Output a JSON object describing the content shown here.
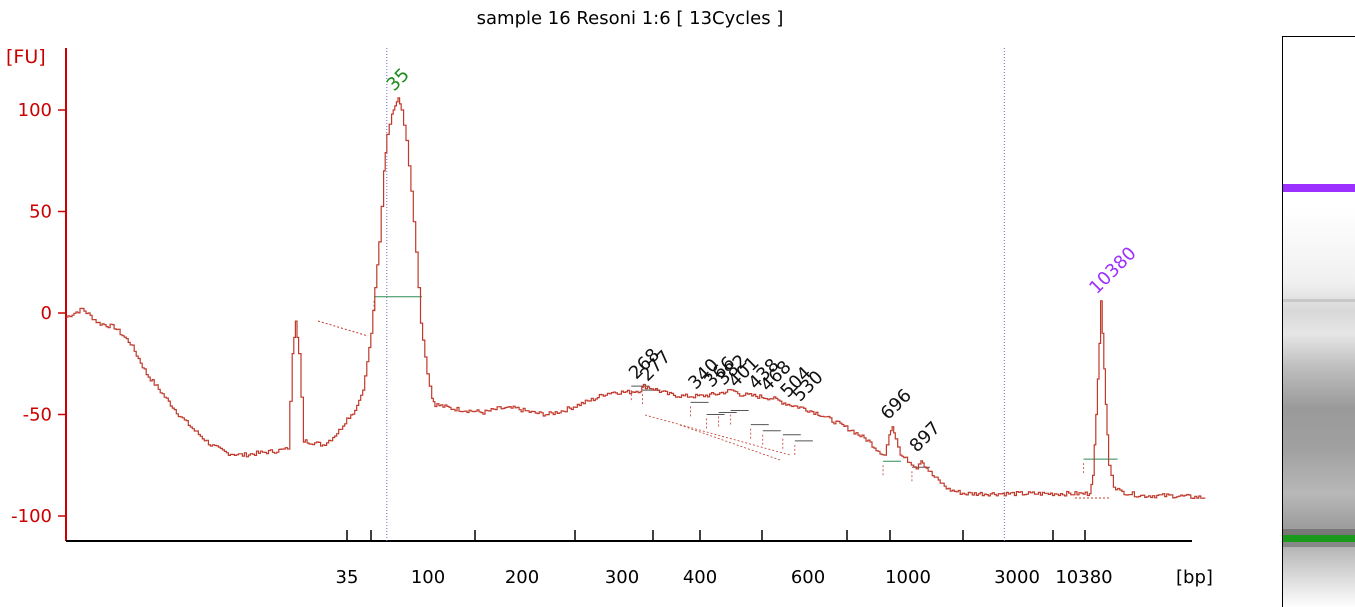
{
  "chart_data": {
    "type": "line",
    "title": "sample 16 Resoni 1:6  [ 13Cycles ]",
    "ylabel": "[FU]",
    "xlabel": "[bp]",
    "ylim": [
      -110,
      128
    ],
    "y_ticks": [
      100,
      50,
      0,
      -50,
      -100
    ],
    "y_tick_labels": [
      "100",
      "50",
      "0",
      "-50",
      "-100"
    ],
    "x_ticks": [
      35,
      100,
      200,
      300,
      400,
      600,
      1000,
      3000,
      10380
    ],
    "x_tick_labels": [
      "35",
      "100",
      "200",
      "300",
      "400",
      "600",
      "1000",
      "3000",
      "10380"
    ],
    "grid": false,
    "series": [
      {
        "color": "#c0392b",
        "points": [
          [
            0,
            -2
          ],
          [
            2,
            2
          ],
          [
            4,
            -5
          ],
          [
            6,
            -7
          ],
          [
            8,
            -15
          ],
          [
            10,
            -30
          ],
          [
            12,
            -40
          ],
          [
            14,
            -50
          ],
          [
            16,
            -58
          ],
          [
            18,
            -65
          ],
          [
            20,
            -69
          ],
          [
            22,
            -70
          ],
          [
            24,
            -69
          ],
          [
            26,
            -68
          ],
          [
            27.6,
            -67
          ],
          [
            28.2,
            -20
          ],
          [
            28.6,
            -4
          ],
          [
            29,
            -20
          ],
          [
            29.6,
            -63
          ],
          [
            31,
            -64
          ],
          [
            32,
            -65
          ],
          [
            33,
            -62
          ],
          [
            34,
            -58
          ],
          [
            35,
            -52
          ],
          [
            36,
            -48
          ],
          [
            37,
            -38
          ],
          [
            38,
            -10
          ],
          [
            39,
            35
          ],
          [
            39.6,
            70
          ],
          [
            40,
            88
          ],
          [
            40.6,
            98
          ],
          [
            41,
            102
          ],
          [
            41.4,
            106
          ],
          [
            41.8,
            100
          ],
          [
            42.4,
            85
          ],
          [
            43,
            60
          ],
          [
            43.6,
            30
          ],
          [
            44.2,
            -5
          ],
          [
            45,
            -30
          ],
          [
            45.6,
            -42
          ],
          [
            46,
            -45
          ],
          [
            48,
            -47
          ],
          [
            50,
            -48
          ],
          [
            52,
            -49
          ],
          [
            54,
            -47
          ],
          [
            56,
            -47
          ],
          [
            58,
            -49
          ],
          [
            60,
            -50
          ],
          [
            62,
            -48
          ],
          [
            64,
            -45
          ],
          [
            66,
            -42
          ],
          [
            67,
            -40
          ],
          [
            68,
            -39
          ],
          [
            70,
            -39
          ],
          [
            71.6,
            -38
          ],
          [
            72,
            -36
          ],
          [
            73,
            -37
          ],
          [
            75,
            -40
          ],
          [
            77,
            -41
          ],
          [
            79,
            -41
          ],
          [
            81,
            -40
          ],
          [
            83,
            -38
          ],
          [
            84,
            -40
          ],
          [
            86,
            -41
          ],
          [
            88,
            -42
          ],
          [
            90,
            -45
          ],
          [
            92,
            -47
          ],
          [
            94,
            -50
          ],
          [
            96,
            -54
          ],
          [
            98,
            -58
          ],
          [
            100,
            -63
          ],
          [
            101,
            -67
          ],
          [
            102,
            -70
          ],
          [
            102.6,
            -60
          ],
          [
            103,
            -56
          ],
          [
            103.4,
            -62
          ],
          [
            104,
            -70
          ],
          [
            105.4,
            -74
          ],
          [
            106,
            -76
          ],
          [
            106.6,
            -72
          ],
          [
            107,
            -75
          ],
          [
            108,
            -80
          ],
          [
            110,
            -87
          ],
          [
            112,
            -89
          ],
          [
            116,
            -89
          ],
          [
            120,
            -89
          ],
          [
            124,
            -89
          ],
          [
            127.6,
            -89
          ],
          [
            128,
            -80
          ],
          [
            128.4,
            -50
          ],
          [
            128.8,
            -15
          ],
          [
            129,
            6
          ],
          [
            129.2,
            -10
          ],
          [
            129.6,
            -45
          ],
          [
            130,
            -75
          ],
          [
            130.6,
            -85
          ],
          [
            131.4,
            -88
          ],
          [
            134,
            -90
          ],
          [
            138,
            -90
          ],
          [
            142,
            -91
          ]
        ]
      }
    ],
    "peaks": [
      {
        "label": "35",
        "color": "green",
        "x": 41.4,
        "y": 106,
        "level": 8
      },
      {
        "label": "268",
        "color": "black",
        "x": 71.6,
        "y": -36,
        "level": -36
      },
      {
        "label": "277",
        "color": "black",
        "x": 73,
        "y": -37,
        "level": -38
      },
      {
        "label": "340",
        "color": "black",
        "x": 79,
        "y": -41,
        "level": -44
      },
      {
        "label": "366",
        "color": "black",
        "x": 81,
        "y": -40,
        "level": -50
      },
      {
        "label": "382",
        "color": "black",
        "x": 82.5,
        "y": -39,
        "level": -49
      },
      {
        "label": "401",
        "color": "black",
        "x": 84,
        "y": -40,
        "level": -48
      },
      {
        "label": "438",
        "color": "black",
        "x": 86.5,
        "y": -41,
        "level": -55
      },
      {
        "label": "468",
        "color": "black",
        "x": 88,
        "y": -42,
        "level": -58
      },
      {
        "label": "504",
        "color": "black",
        "x": 90.5,
        "y": -45,
        "level": -60
      },
      {
        "label": "530",
        "color": "black",
        "x": 92,
        "y": -47,
        "level": -63
      },
      {
        "label": "696",
        "color": "black",
        "x": 103,
        "y": -56,
        "level": -73
      },
      {
        "label": "897",
        "color": "black",
        "x": 106.6,
        "y": -72,
        "level": -76
      },
      {
        "label": "10380",
        "color": "purple",
        "x": 129,
        "y": 6,
        "level": -72
      }
    ],
    "markers": [
      40,
      117
    ]
  },
  "gel": {
    "bands": [
      "purple",
      "green"
    ]
  }
}
